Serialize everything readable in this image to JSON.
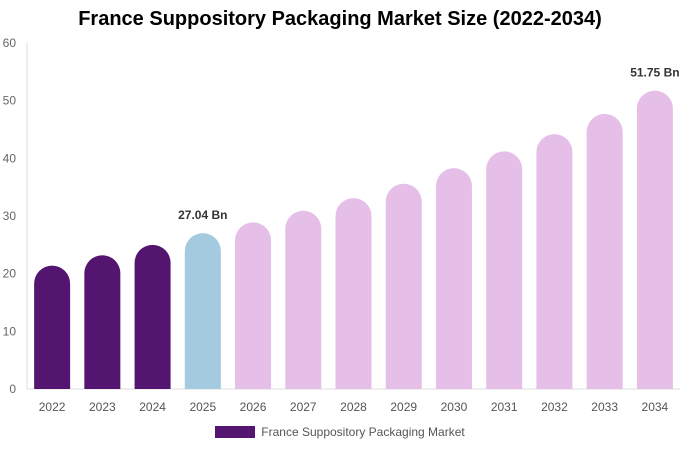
{
  "chart_data": {
    "type": "bar",
    "title": "France Suppository Packaging Market Size (2022-2034)",
    "categories": [
      "2022",
      "2023",
      "2024",
      "2025",
      "2026",
      "2027",
      "2028",
      "2029",
      "2030",
      "2031",
      "2032",
      "2033",
      "2034"
    ],
    "series": [
      {
        "name": "France Suppository Packaging Market",
        "values": [
          21.4,
          23.2,
          25.0,
          27.04,
          28.9,
          30.9,
          33.1,
          35.6,
          38.3,
          41.2,
          44.2,
          47.7,
          51.75
        ]
      }
    ],
    "data_labels": [
      {
        "category": "2025",
        "text": "27.04 Bn"
      },
      {
        "category": "2034",
        "text": "51.75 Bn"
      }
    ],
    "ylim": [
      0,
      60
    ],
    "yticks": [
      0,
      10,
      20,
      30,
      40,
      50,
      60
    ],
    "xlabel": "",
    "ylabel": "",
    "grid": false,
    "legend_position": "bottom-center",
    "colors": {
      "historical": "#541570",
      "current": "#a3cadf",
      "forecast": "#e6bfe9",
      "legend_swatch": "#541570"
    },
    "bar_roles": [
      "historical",
      "historical",
      "historical",
      "current",
      "forecast",
      "forecast",
      "forecast",
      "forecast",
      "forecast",
      "forecast",
      "forecast",
      "forecast",
      "forecast"
    ]
  }
}
